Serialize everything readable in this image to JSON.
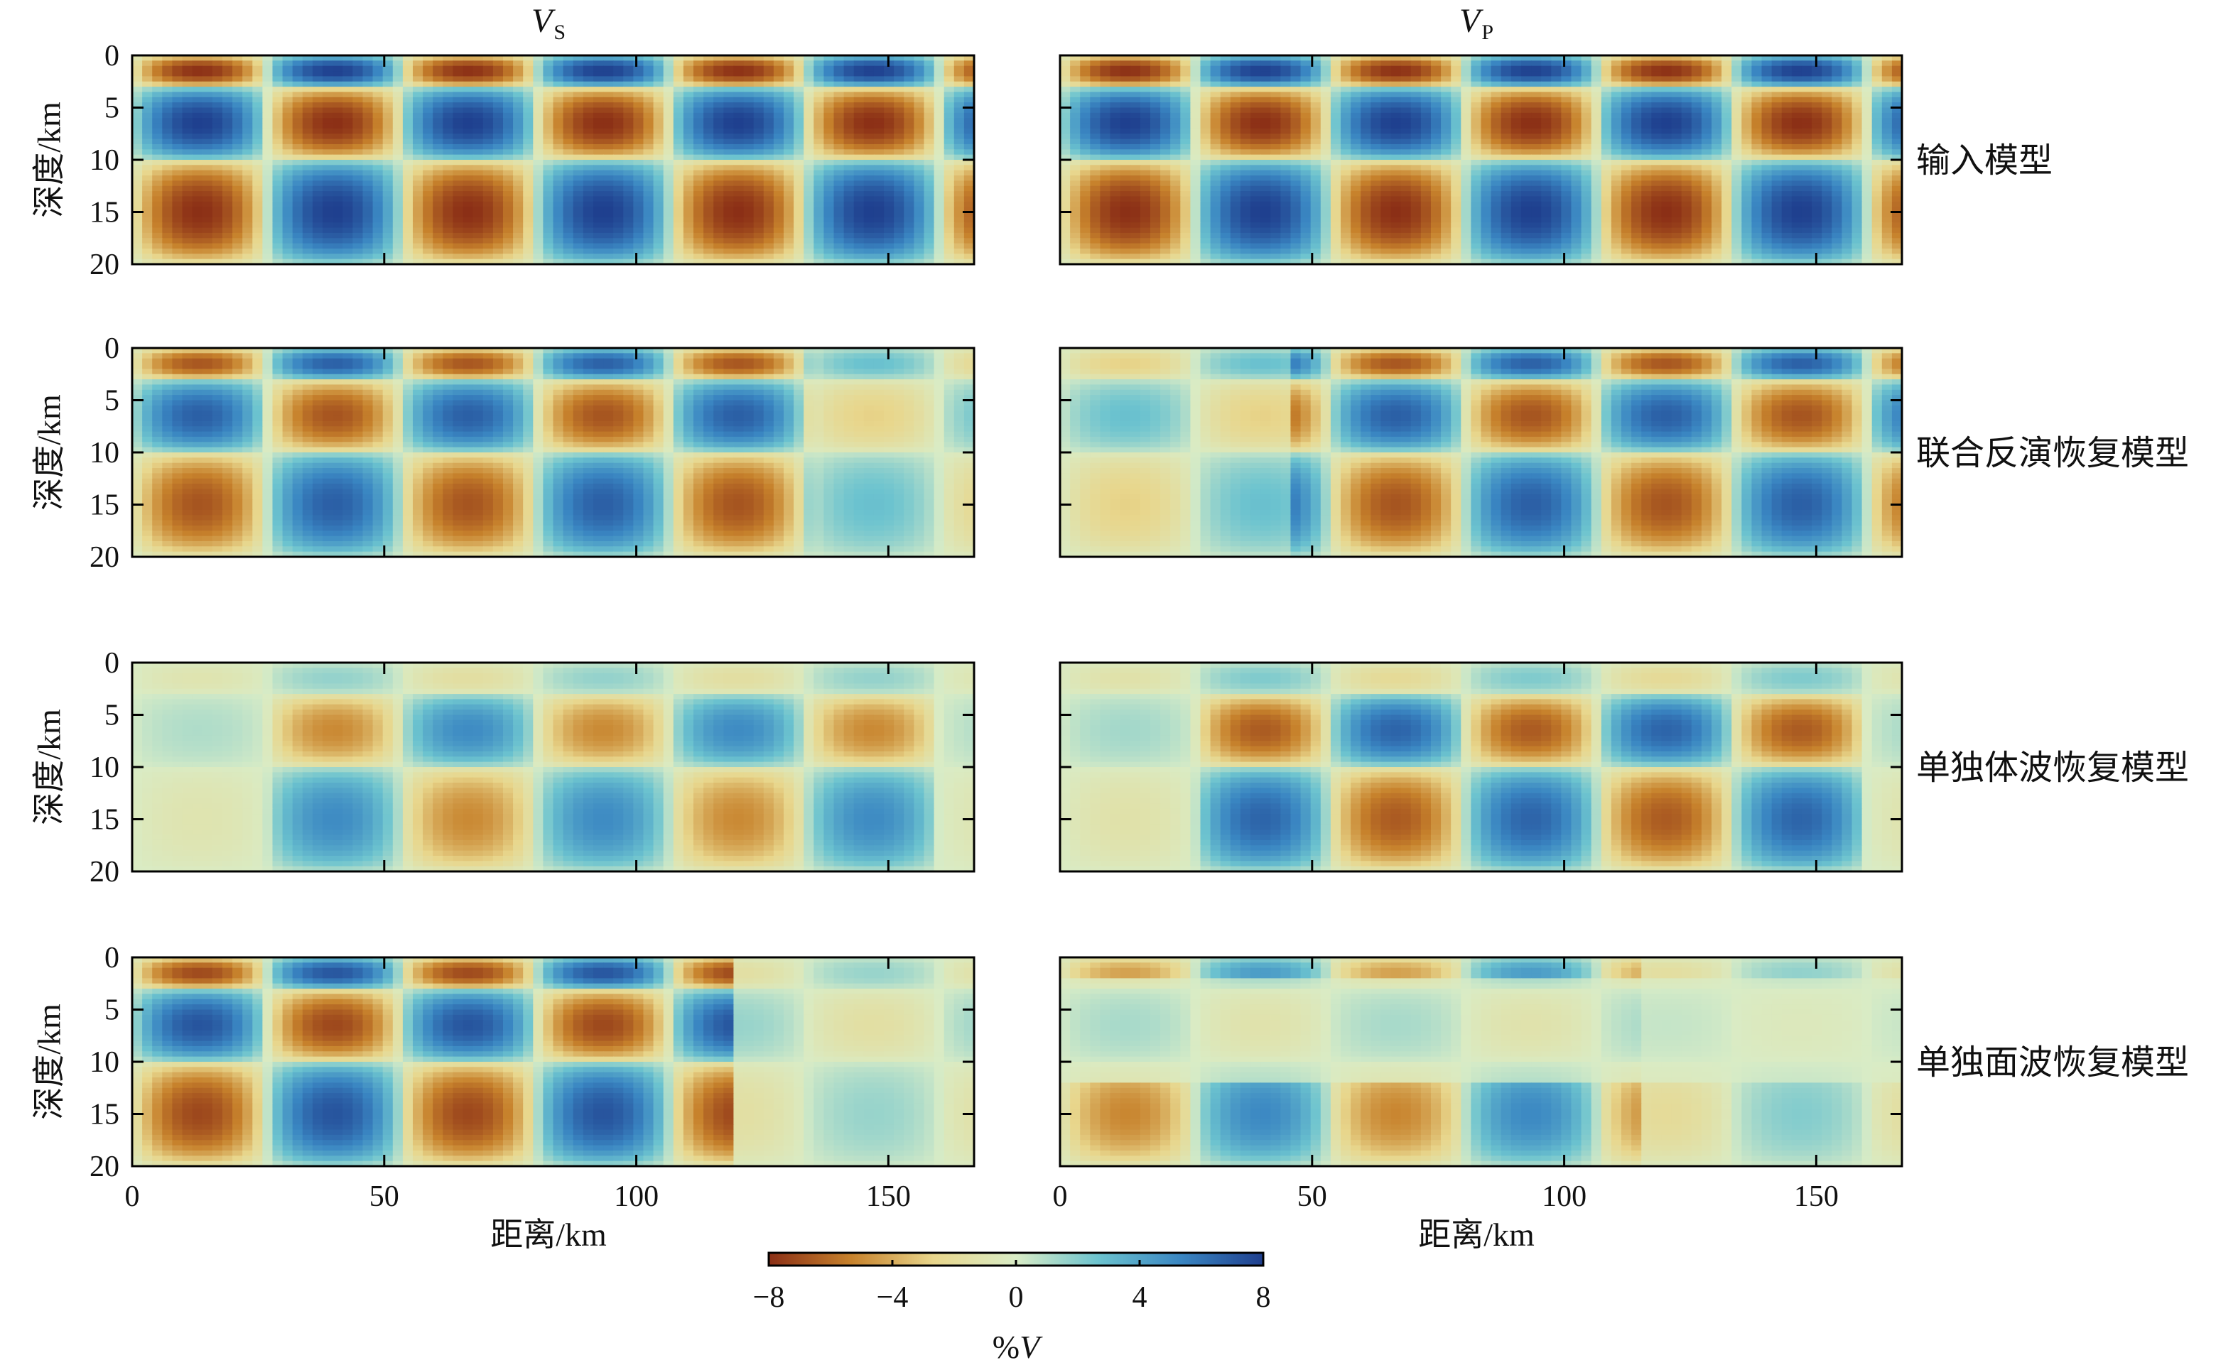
{
  "chart_data": {
    "type": "heatmap",
    "columns": [
      {
        "title": "V",
        "subscript": "S"
      },
      {
        "title": "V",
        "subscript": "P"
      }
    ],
    "rows": [
      {
        "label": "输入模型",
        "pattern": "input"
      },
      {
        "label": "联合反演恢复模型",
        "pattern": "joint"
      },
      {
        "label": "单独体波恢复模型",
        "pattern": "body"
      },
      {
        "label": "单独面波恢复模型",
        "pattern": "surface"
      }
    ],
    "ylabel": "深度/km",
    "xlabel": "距离/km",
    "xlim": [
      0,
      167
    ],
    "ylim": [
      20,
      0
    ],
    "xticks": [
      "0",
      "50",
      "100",
      "150"
    ],
    "yticks": [
      "0",
      "5",
      "10",
      "15",
      "20"
    ],
    "grid": false,
    "checkerboard": {
      "anomaly_percent": 8,
      "cell_width_km": 26.7,
      "layer_tops_km": [
        0,
        3,
        10
      ],
      "layer_bottoms_km": [
        3,
        10,
        20
      ],
      "first_cell_sign": -1
    },
    "colorbar": {
      "label": "%V",
      "min": -8,
      "max": 8,
      "ticks": [
        "−8",
        "−4",
        "0",
        "4",
        "8"
      ],
      "colors": [
        "#8b2f16",
        "#c7822c",
        "#e8d68c",
        "#d9ecc6",
        "#6cc3cf",
        "#3a86c2",
        "#1f3f8e"
      ]
    }
  }
}
